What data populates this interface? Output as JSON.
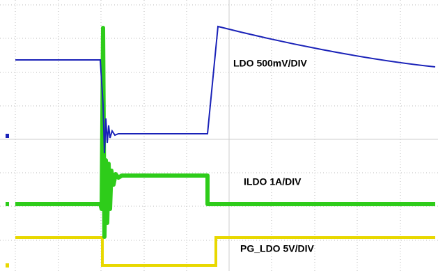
{
  "traces": [
    {
      "label": "LDO 500mV/DIV"
    },
    {
      "label": "ILDO 1A/DIV"
    },
    {
      "label": "PG_LDO 5V/DIV"
    }
  ]
}
